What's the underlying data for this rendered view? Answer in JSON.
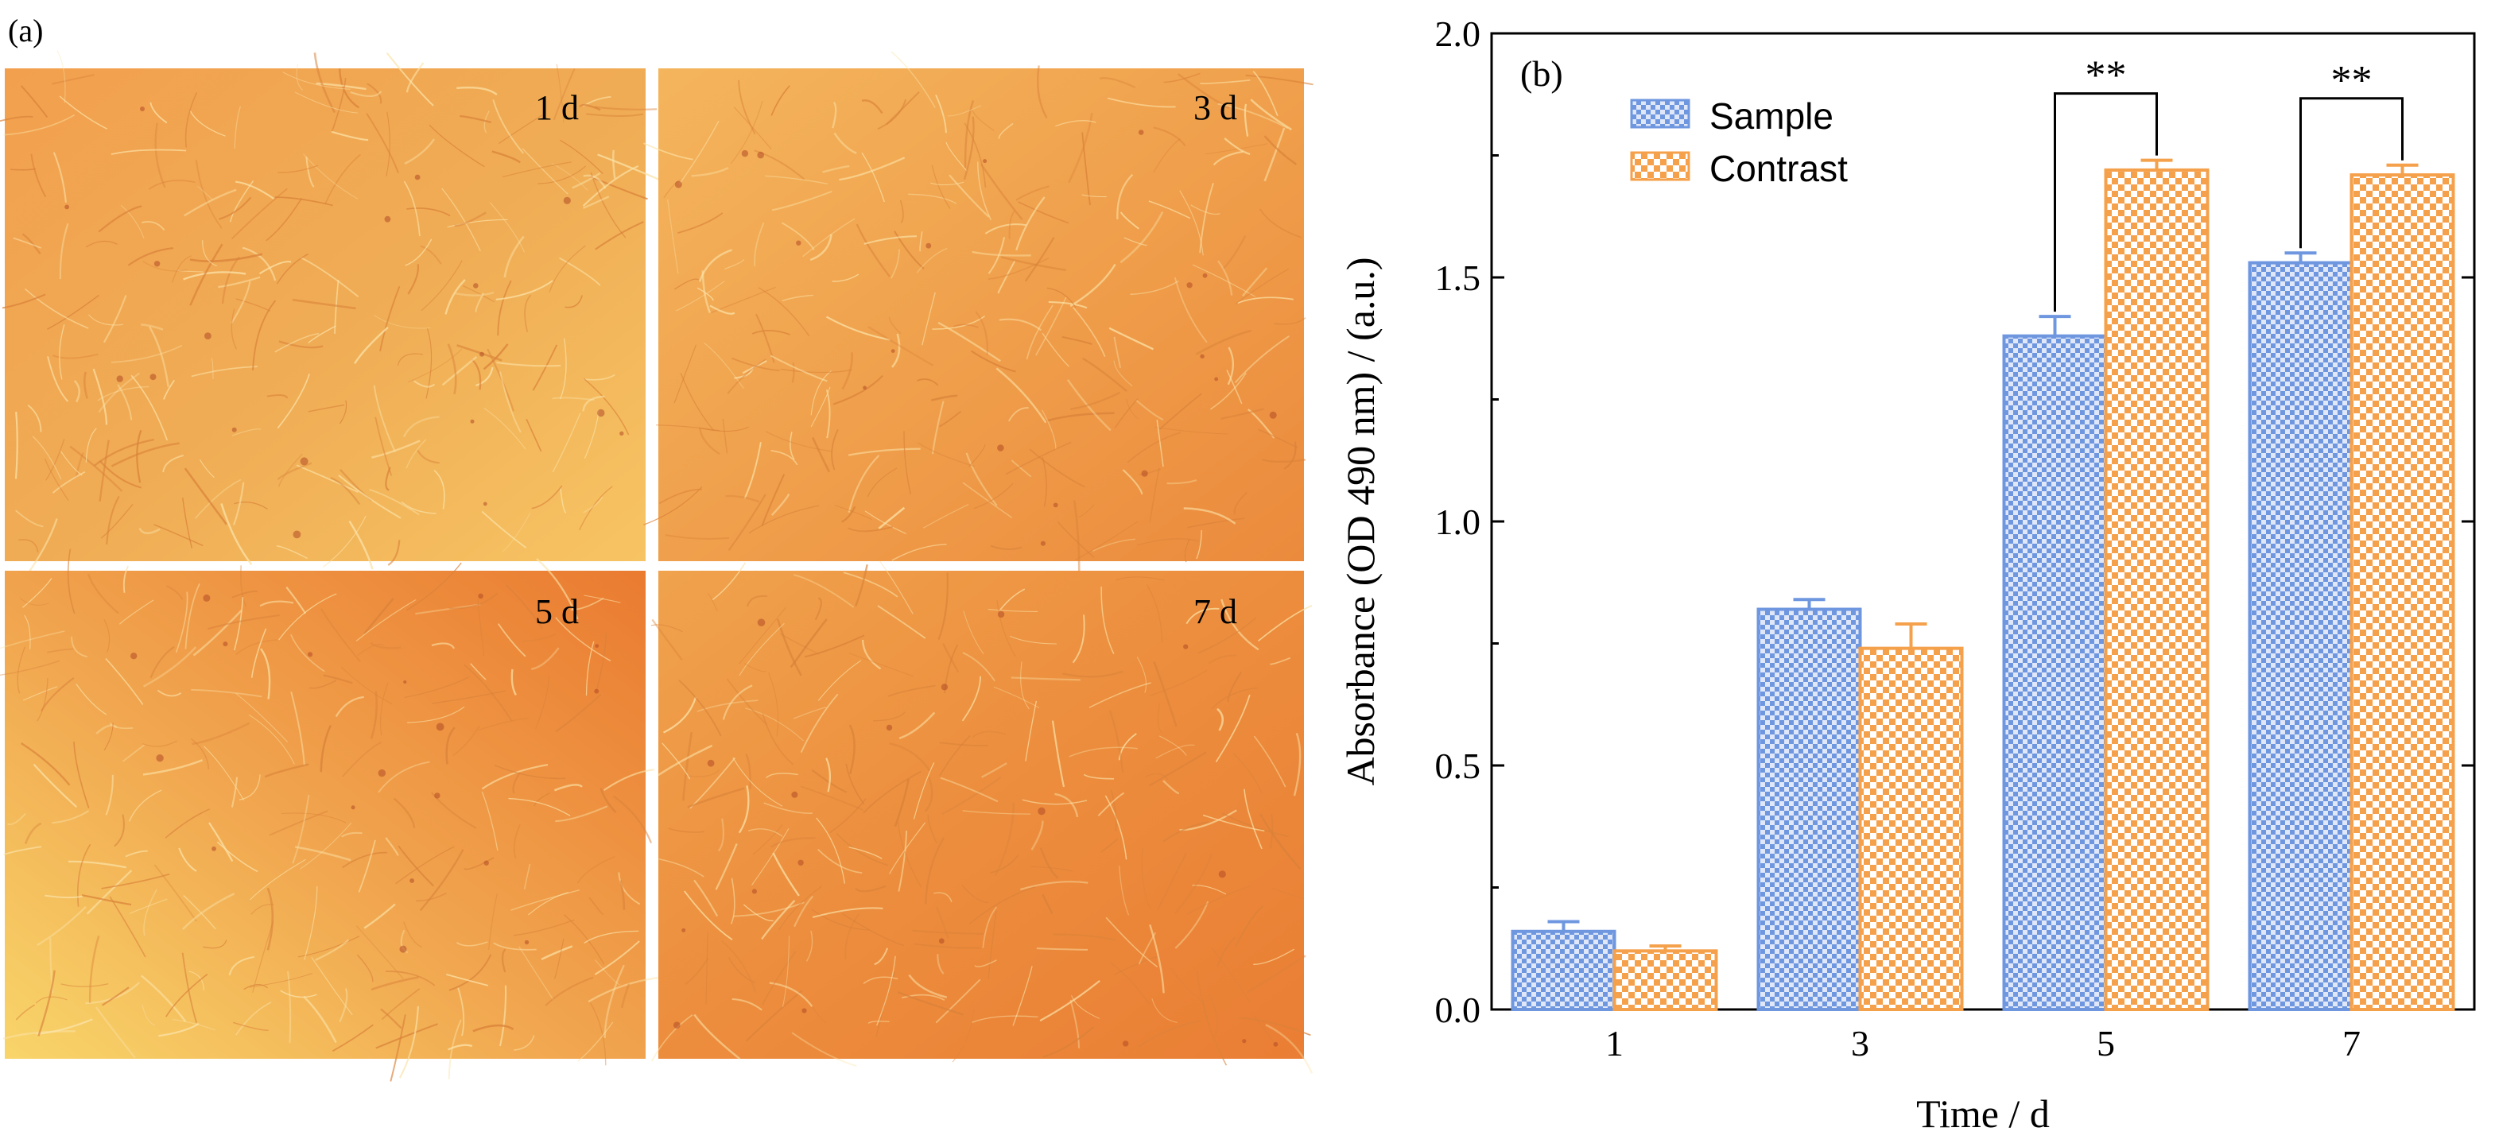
{
  "panel_a": {
    "label": "(a)",
    "images": [
      {
        "label": "1 d"
      },
      {
        "label": "3 d"
      },
      {
        "label": "5 d"
      },
      {
        "label": "7 d"
      }
    ]
  },
  "colors": {
    "sample": "#6f97e0",
    "contrast": "#f5a04a",
    "micrograph_light": "#f6c45a",
    "micrograph_dark": "#ec7f33"
  },
  "chart_data": {
    "type": "bar",
    "panel_label": "(b)",
    "xlabel": "Time / d",
    "ylabel": "Absorbance (OD 490 nm) / (a.u.)",
    "categories": [
      "1",
      "3",
      "5",
      "7"
    ],
    "ylim": [
      0,
      2.0
    ],
    "yticks": [
      "0.0",
      "0.5",
      "1.0",
      "1.5",
      "2.0"
    ],
    "grid": false,
    "legend_position": "top-left",
    "series": [
      {
        "name": "Sample",
        "values": [
          0.16,
          0.82,
          1.38,
          1.53
        ],
        "errors": [
          0.02,
          0.02,
          0.04,
          0.02
        ]
      },
      {
        "name": "Contrast",
        "values": [
          0.12,
          0.74,
          1.72,
          1.71
        ],
        "errors": [
          0.01,
          0.05,
          0.02,
          0.02
        ]
      }
    ],
    "annotations": [
      {
        "category": "5",
        "text": "**"
      },
      {
        "category": "7",
        "text": "**"
      }
    ]
  }
}
